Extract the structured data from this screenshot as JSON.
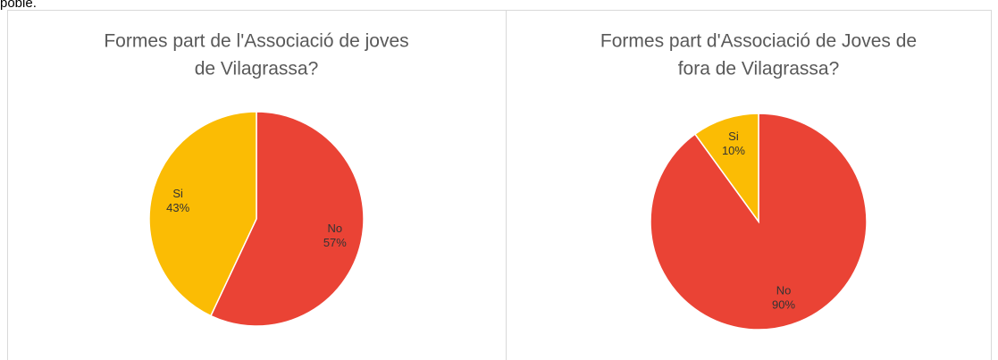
{
  "text_fragment": "poble.",
  "chart_data": [
    {
      "type": "pie",
      "title": [
        "Formes part de l'Associació de joves",
        "de Vilagrassa?"
      ],
      "categories": [
        "No",
        "Si"
      ],
      "values": [
        57,
        43
      ],
      "value_labels": [
        "57%",
        "43%"
      ],
      "colors": [
        "#ea4335",
        "#fbbc04"
      ]
    },
    {
      "type": "pie",
      "title": [
        "Formes part d'Associació de Joves de",
        "fora de Vilagrassa?"
      ],
      "categories": [
        "No",
        "Si"
      ],
      "values": [
        90,
        10
      ],
      "value_labels": [
        "90%",
        "10%"
      ],
      "colors": [
        "#ea4335",
        "#fbbc04"
      ]
    }
  ]
}
